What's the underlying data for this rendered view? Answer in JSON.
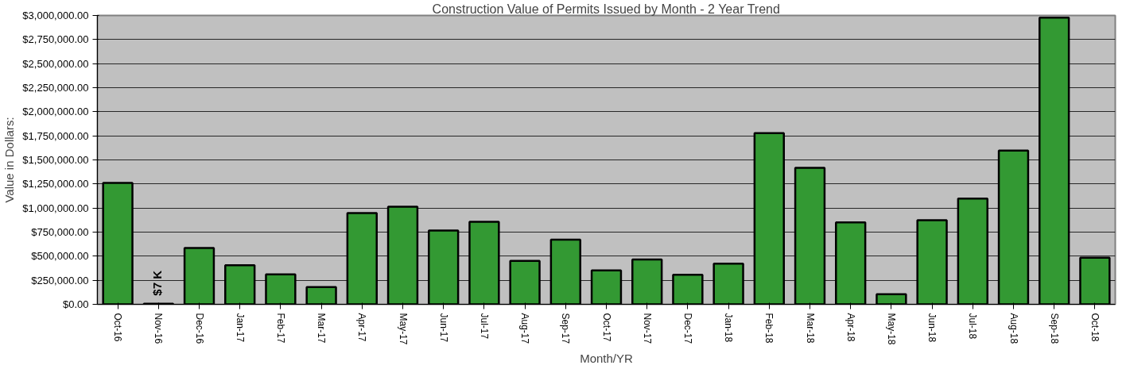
{
  "chart_data": {
    "type": "bar",
    "title": "Construction Value of Permits Issued by Month - 2 Year Trend",
    "xlabel": "Month/YR",
    "ylabel": "Value in Dollars:",
    "categories": [
      "Oct-16",
      "Nov-16",
      "Dec-16",
      "Jan-17",
      "Feb-17",
      "Mar-17",
      "Apr-17",
      "May-17",
      "Jun-17",
      "Jul-17",
      "Aug-17",
      "Sep-17",
      "Oct-17",
      "Nov-17",
      "Dec-17",
      "Jan-18",
      "Feb-18",
      "Mar-18",
      "Apr-18",
      "May-18",
      "Jun-18",
      "Jul-18",
      "Aug-18",
      "Sep-18",
      "Oct-18"
    ],
    "values": [
      1260000,
      7000,
      585000,
      405000,
      312000,
      179000,
      947000,
      1013000,
      767000,
      857000,
      452000,
      672000,
      353000,
      466000,
      307000,
      423000,
      1778000,
      1417000,
      850000,
      105000,
      873000,
      1099000,
      1596000,
      2977000,
      485000
    ],
    "color": "#339933",
    "ylim": [
      0,
      3000000
    ],
    "yticks": [
      {
        "value": 0,
        "label": "$0.00"
      },
      {
        "value": 250000,
        "label": "$250,000.00"
      },
      {
        "value": 500000,
        "label": "$500,000.00"
      },
      {
        "value": 750000,
        "label": "$750,000.00"
      },
      {
        "value": 1000000,
        "label": "$1,000,000.00"
      },
      {
        "value": 1250000,
        "label": "$1,250,000.00"
      },
      {
        "value": 1500000,
        "label": "$1,500,000.00"
      },
      {
        "value": 1750000,
        "label": "$1,750,000.00"
      },
      {
        "value": 2000000,
        "label": "$2,000,000.00"
      },
      {
        "value": 2250000,
        "label": "$2,250,000.00"
      },
      {
        "value": 2500000,
        "label": "$2,500,000.00"
      },
      {
        "value": 2750000,
        "label": "$2,750,000.00"
      },
      {
        "value": 3000000,
        "label": "$3,000,000.00"
      }
    ],
    "grid": "y",
    "annotations": [
      {
        "text": "$7 K",
        "x": "Nov-16",
        "y": 7000
      }
    ]
  }
}
